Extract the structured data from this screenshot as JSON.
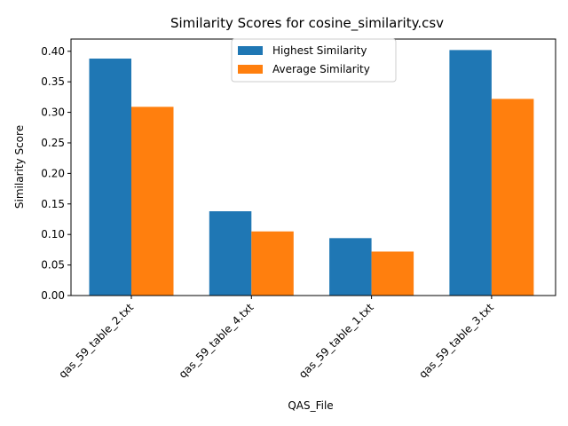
{
  "chart_data": {
    "type": "bar",
    "title": "Similarity Scores for cosine_similarity.csv",
    "xlabel": "QAS_File",
    "ylabel": "Similarity Score",
    "categories": [
      "qas_59_table_2.txt",
      "qas_59_table_4.txt",
      "qas_59_table_1.txt",
      "qas_59_table_3.txt"
    ],
    "series": [
      {
        "name": "Highest Similarity",
        "color": "#1f77b4",
        "values": [
          0.388,
          0.138,
          0.094,
          0.402
        ]
      },
      {
        "name": "Average Similarity",
        "color": "#ff7f0e",
        "values": [
          0.309,
          0.105,
          0.072,
          0.322
        ]
      }
    ],
    "ylim": [
      0,
      0.42
    ],
    "yticks": [
      "0.00",
      "0.05",
      "0.10",
      "0.15",
      "0.20",
      "0.25",
      "0.30",
      "0.35",
      "0.40"
    ],
    "grid": false,
    "legend_position": "upper-center"
  }
}
